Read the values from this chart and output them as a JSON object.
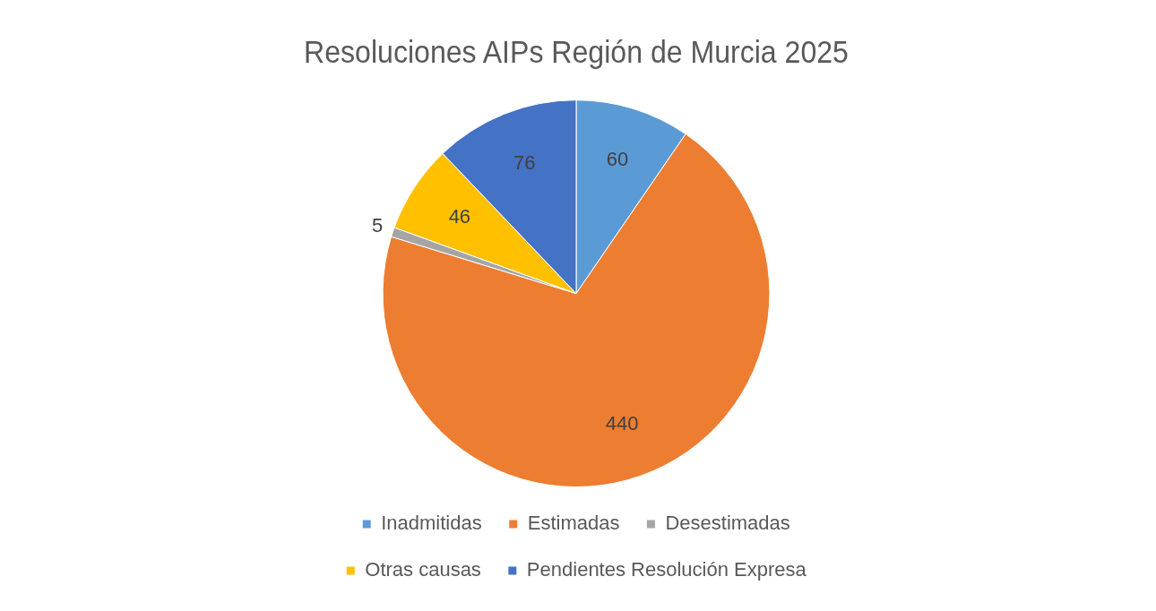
{
  "chart_data": {
    "type": "pie",
    "title": "Resoluciones AIPs Región de Murcia 2025",
    "categories": [
      "Inadmitidas",
      "Estimadas",
      "Desestimadas",
      "Otras causas",
      "Pendientes Resolución Expresa"
    ],
    "values": [
      60,
      440,
      5,
      46,
      76
    ],
    "colors": [
      "#5b9bd5",
      "#ed7d31",
      "#a5a5a5",
      "#ffc000",
      "#4472c4"
    ],
    "data_labels": true,
    "legend": "bottom"
  }
}
